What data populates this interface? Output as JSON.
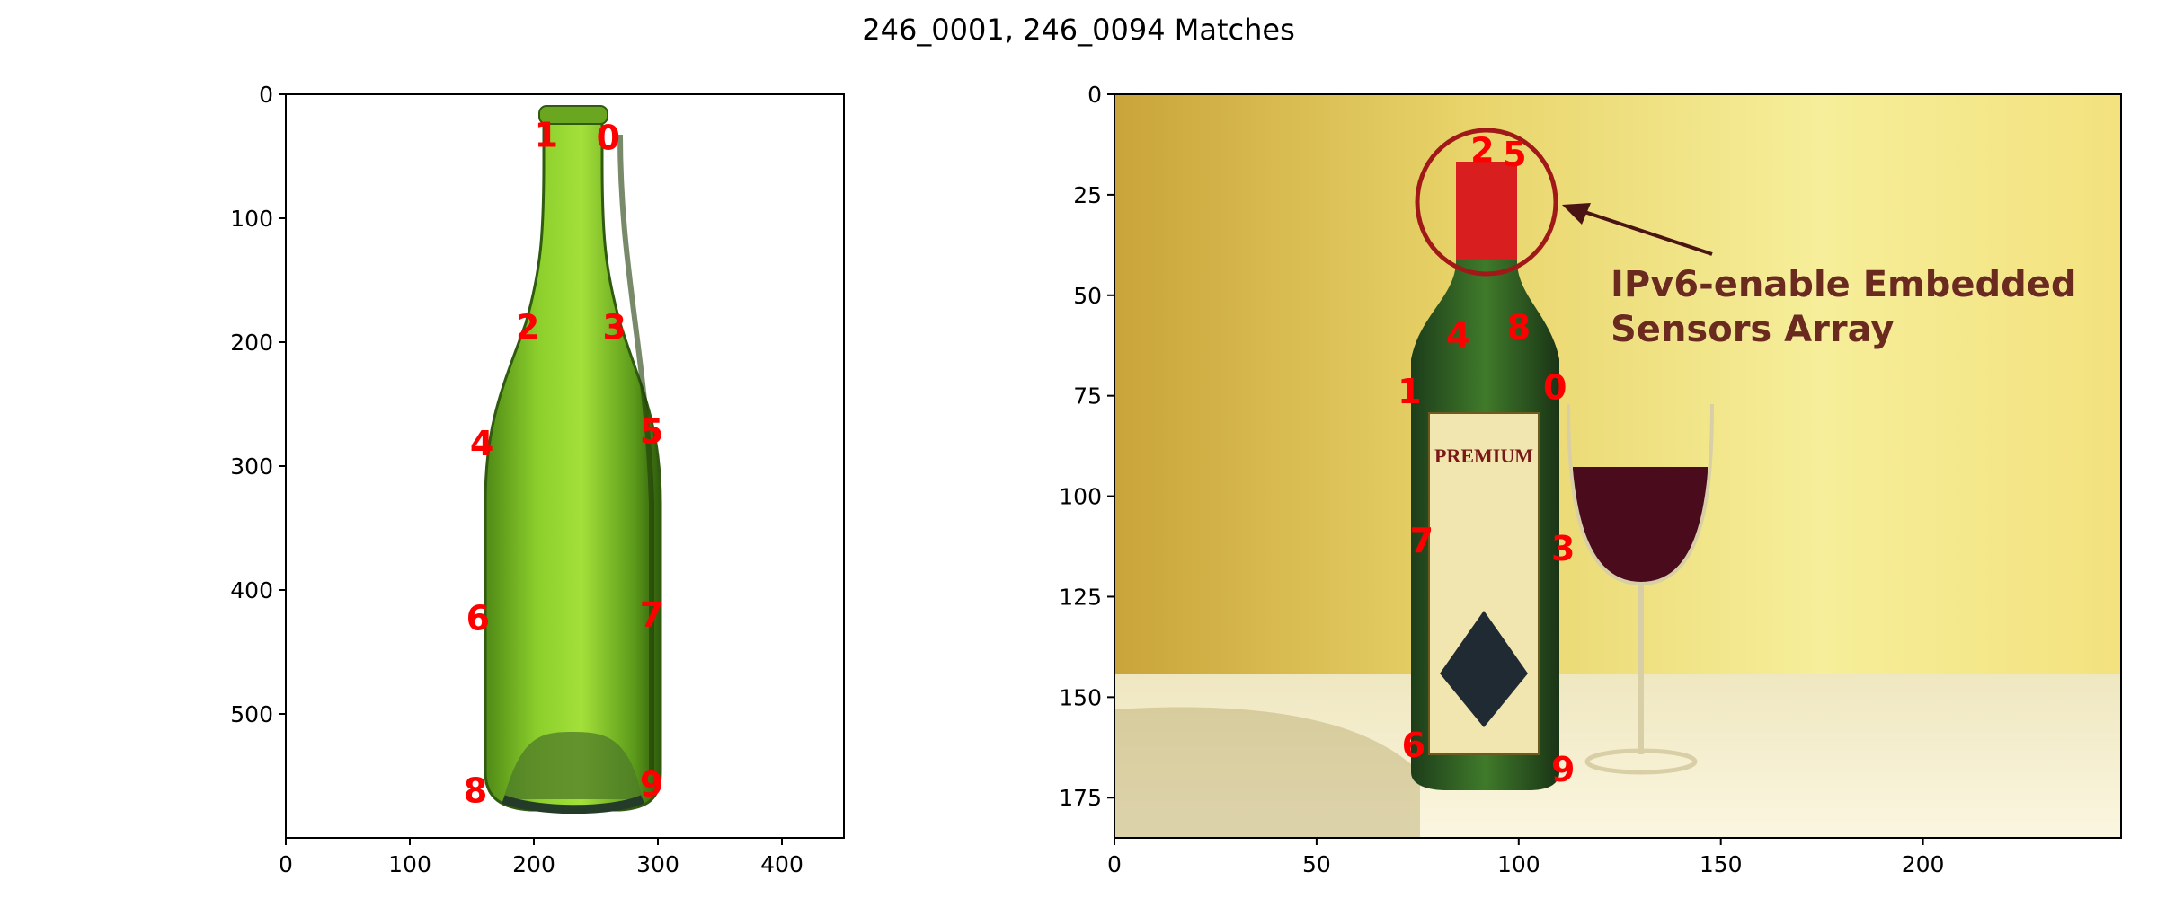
{
  "figure": {
    "title": "246_0001, 246_0094 Matches",
    "marker_color": "#ff0000"
  },
  "chart_data": [
    {
      "type": "scatter",
      "name": "",
      "image_width": 450,
      "image_height": 600,
      "xlim": [
        0,
        450
      ],
      "ylim": [
        600,
        0
      ],
      "xticks": [
        0,
        100,
        200,
        300,
        400
      ],
      "yticks": [
        0,
        100,
        200,
        300,
        400,
        500
      ],
      "grid": false,
      "points": [
        {
          "label": "0",
          "x": 260,
          "y": 35
        },
        {
          "label": "1",
          "x": 210,
          "y": 33
        },
        {
          "label": "2",
          "x": 195,
          "y": 188
        },
        {
          "label": "3",
          "x": 265,
          "y": 188
        },
        {
          "label": "4",
          "x": 158,
          "y": 282
        },
        {
          "label": "5",
          "x": 295,
          "y": 272
        },
        {
          "label": "6",
          "x": 155,
          "y": 423
        },
        {
          "label": "7",
          "x": 295,
          "y": 420
        },
        {
          "label": "8",
          "x": 153,
          "y": 562
        },
        {
          "label": "9",
          "x": 295,
          "y": 557
        }
      ]
    },
    {
      "type": "scatter",
      "name": "",
      "image_width": 249,
      "image_height": 185,
      "xlim": [
        0,
        249
      ],
      "ylim": [
        185,
        0
      ],
      "xticks": [
        0,
        50,
        100,
        150,
        200
      ],
      "yticks": [
        0,
        25,
        50,
        75,
        100,
        125,
        150,
        175
      ],
      "grid": false,
      "annotation": [
        "IPv6-enable Embedded",
        "Sensors Array"
      ],
      "bottle_label": "PREMIUM",
      "points": [
        {
          "label": "0",
          "x": 109,
          "y": 73
        },
        {
          "label": "1",
          "x": 73,
          "y": 74
        },
        {
          "label": "2",
          "x": 91,
          "y": 14
        },
        {
          "label": "3",
          "x": 111,
          "y": 113
        },
        {
          "label": "4",
          "x": 85,
          "y": 60
        },
        {
          "label": "5",
          "x": 99,
          "y": 15
        },
        {
          "label": "6",
          "x": 74,
          "y": 162
        },
        {
          "label": "7",
          "x": 76,
          "y": 111
        },
        {
          "label": "8",
          "x": 100,
          "y": 58
        },
        {
          "label": "9",
          "x": 111,
          "y": 168
        }
      ]
    }
  ]
}
